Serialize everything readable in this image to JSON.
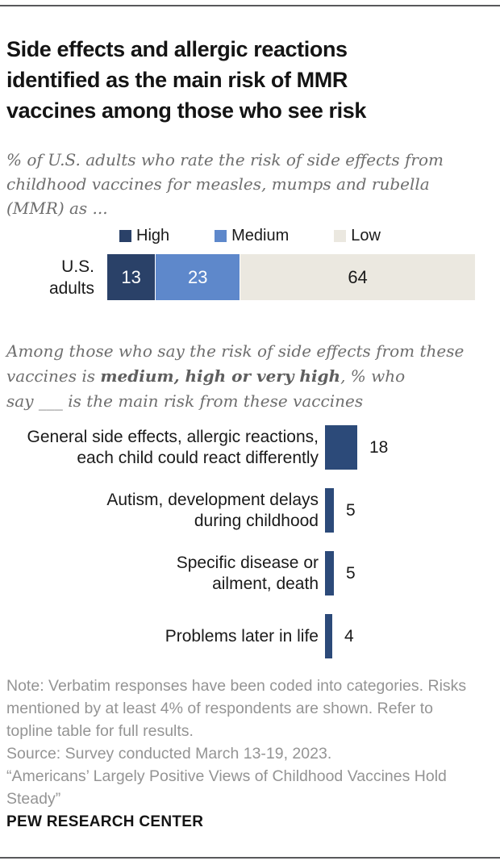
{
  "header": {
    "title": "Side effects and allergic reactions\nidentified as the main risk of MMR\nvaccines among those who see risk",
    "subtitle": "% of U.S. adults who rate the risk of side effects from\nchildhood vaccines for measles, mumps and rubella\n(MMR) as ..."
  },
  "mid_note": {
    "pre": "Among those who say the risk of side effects from these\nvaccines is ",
    "bold": "medium, high or very high",
    "post": ", % who\nsay ___ is the main risk from these vaccines"
  },
  "chart_data": [
    {
      "type": "bar",
      "variant": "stacked-horizontal",
      "title": "% of U.S. adults who rate the risk of side effects from childhood vaccines for measles, mumps and rubella (MMR) as ...",
      "categories": [
        "U.S.\nadults"
      ],
      "series": [
        {
          "name": "High",
          "values": [
            13
          ],
          "color": "#2a4168",
          "label_color": "#ffffff"
        },
        {
          "name": "Medium",
          "values": [
            23
          ],
          "color": "#5e88cb",
          "label_color": "#ffffff"
        },
        {
          "name": "Low",
          "values": [
            64
          ],
          "color": "#ebe8e0",
          "label_color": "#1a1a1a"
        }
      ],
      "xlim": [
        0,
        100
      ],
      "legend_position": "top",
      "grid": false
    },
    {
      "type": "bar",
      "variant": "horizontal",
      "title": "Among those who say the risk of side effects from these vaccines is medium, high or very high, % who say ___ is the main risk from these vaccines",
      "categories": [
        "General side effects, allergic reactions,\neach child could react differently",
        "Autism, development delays\nduring childhood",
        "Specific disease or\nailment, death",
        "Problems later in life"
      ],
      "values": [
        18,
        5,
        5,
        4
      ],
      "bar_color": "#2c4a79",
      "value_labels": true,
      "xlim": [
        0,
        100
      ],
      "grid": false
    }
  ],
  "footer": {
    "note": "Note: Verbatim responses have been coded into categories. Risks\nmentioned by at least 4% of respondents are shown. Refer to\ntopline table for full results.",
    "source": "Source: Survey conducted March 13-19, 2023.",
    "quote": "“Americans’ Largely Positive Views of Childhood Vaccines Hold\nSteady”",
    "brand": "PEW RESEARCH CENTER"
  }
}
